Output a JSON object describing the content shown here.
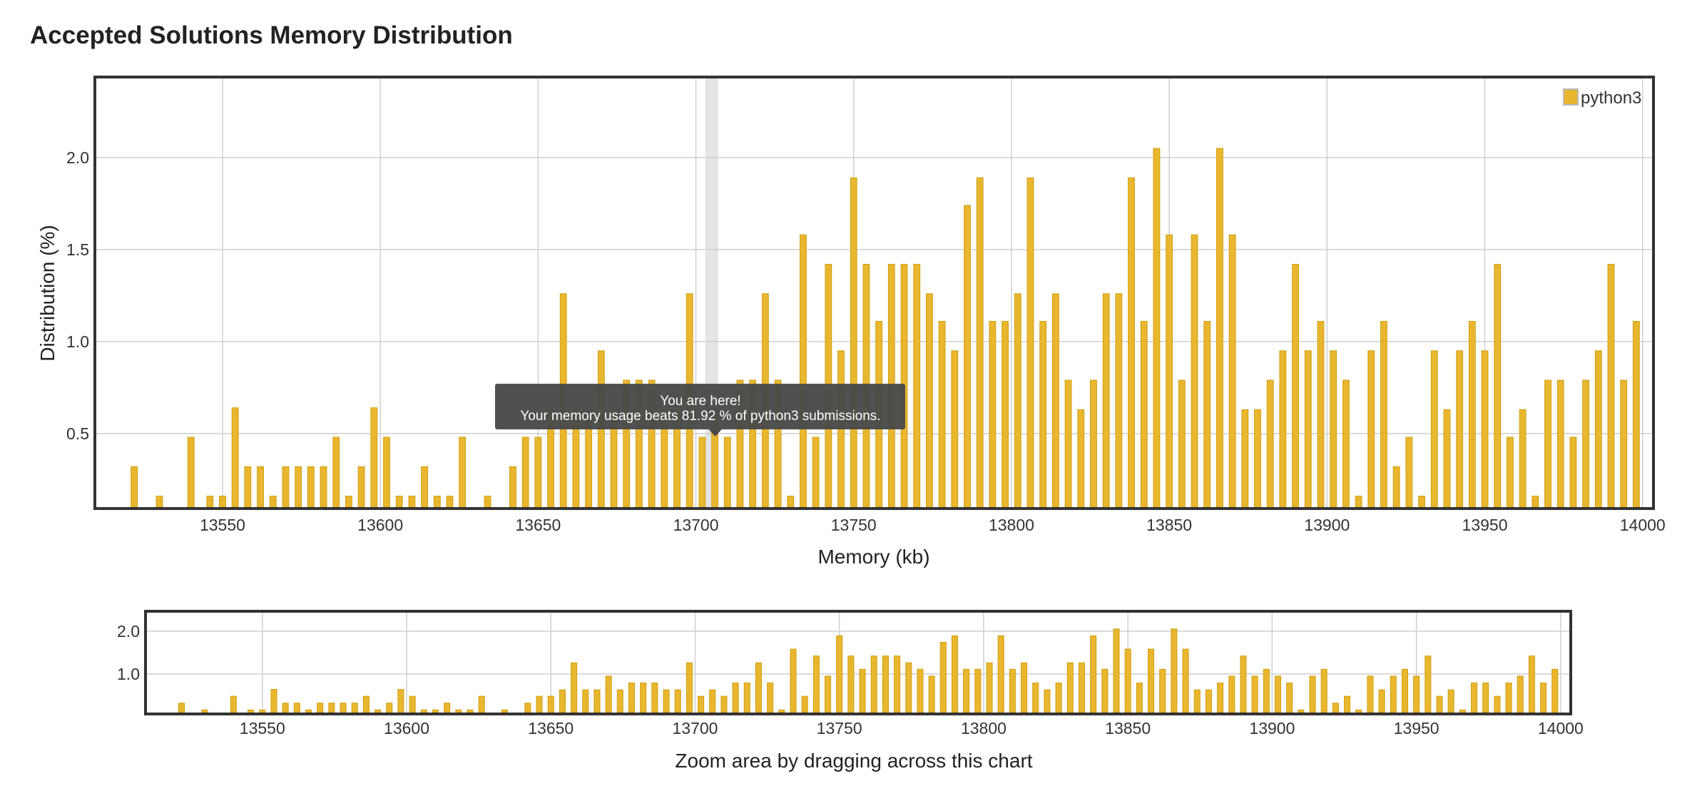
{
  "page": {
    "title": "Accepted Solutions Memory Distribution"
  },
  "colors": {
    "bar": "#e8b72f",
    "bar_stroke": "#d39f12",
    "grid": "#cfcfcf",
    "frame": "#333333",
    "highlight": "#e4e4e4",
    "tooltip_bg": "#4a4a4a"
  },
  "chart_data": [
    {
      "type": "bar",
      "xlabel": "Memory (kb)",
      "ylabel": "Distribution (%)",
      "xlim": [
        13510,
        14003
      ],
      "ylim": [
        0.1,
        2.43
      ],
      "xticks": [
        13550,
        13600,
        13650,
        13700,
        13750,
        13800,
        13850,
        13900,
        13950,
        14000
      ],
      "yticks": [
        0.5,
        1.0,
        1.5,
        2.0
      ],
      "grid": true,
      "legend": {
        "position": "top-right",
        "entries": [
          "python3"
        ]
      },
      "series": [
        {
          "name": "python3",
          "x": [
            13522,
            13530,
            13540,
            13546,
            13550,
            13554,
            13558,
            13562,
            13566,
            13570,
            13574,
            13578,
            13582,
            13586,
            13590,
            13594,
            13598,
            13602,
            13606,
            13610,
            13614,
            13618,
            13622,
            13626,
            13634,
            13642,
            13646,
            13650,
            13654,
            13658,
            13662,
            13666,
            13670,
            13674,
            13678,
            13682,
            13686,
            13690,
            13694,
            13698,
            13702,
            13706,
            13710,
            13714,
            13718,
            13722,
            13726,
            13730,
            13734,
            13738,
            13742,
            13746,
            13750,
            13754,
            13758,
            13762,
            13766,
            13770,
            13774,
            13778,
            13782,
            13786,
            13790,
            13794,
            13798,
            13802,
            13806,
            13810,
            13814,
            13818,
            13822,
            13826,
            13830,
            13834,
            13838,
            13842,
            13846,
            13850,
            13854,
            13858,
            13862,
            13866,
            13870,
            13874,
            13878,
            13882,
            13886,
            13890,
            13894,
            13898,
            13902,
            13906,
            13910,
            13914,
            13918,
            13922,
            13926,
            13930,
            13934,
            13938,
            13942,
            13946,
            13950,
            13954,
            13958,
            13962,
            13966,
            13970,
            13974,
            13978,
            13982,
            13986,
            13990,
            13994,
            13998
          ],
          "values": [
            0.32,
            0.16,
            0.48,
            0.16,
            0.16,
            0.64,
            0.32,
            0.32,
            0.16,
            0.32,
            0.32,
            0.32,
            0.32,
            0.48,
            0.16,
            0.32,
            0.64,
            0.48,
            0.16,
            0.16,
            0.32,
            0.16,
            0.16,
            0.48,
            0.16,
            0.32,
            0.48,
            0.48,
            0.63,
            1.26,
            0.63,
            0.63,
            0.95,
            0.63,
            0.79,
            0.79,
            0.79,
            0.63,
            0.63,
            1.26,
            0.48,
            0.63,
            0.48,
            0.79,
            0.79,
            1.26,
            0.79,
            0.16,
            1.58,
            0.48,
            1.42,
            0.95,
            1.89,
            1.42,
            1.11,
            1.42,
            1.42,
            1.42,
            1.26,
            1.11,
            0.95,
            1.74,
            1.89,
            1.11,
            1.11,
            1.26,
            1.89,
            1.11,
            1.26,
            0.79,
            0.63,
            0.79,
            1.26,
            1.26,
            1.89,
            1.11,
            2.05,
            1.58,
            0.79,
            1.58,
            1.11,
            2.05,
            1.58,
            0.63,
            0.63,
            0.79,
            0.95,
            1.42,
            0.95,
            1.11,
            0.95,
            0.79,
            0.16,
            0.95,
            1.11,
            0.32,
            0.48,
            0.16,
            0.95,
            0.63,
            0.95,
            1.11,
            0.95,
            1.42,
            0.48,
            0.63,
            0.16,
            0.79,
            0.79,
            0.48,
            0.79,
            0.95,
            1.42,
            0.79,
            1.11
          ]
        }
      ],
      "annotation": {
        "highlight_x": 13705,
        "tooltip": {
          "line1": "You are here!",
          "line2": "Your memory usage beats 81.92 % of python3 submissions."
        }
      }
    },
    {
      "type": "bar",
      "xlabel": "Zoom area by dragging across this chart",
      "xlim": [
        13510,
        14003
      ],
      "ylim": [
        0.1,
        2.43
      ],
      "xticks": [
        13550,
        13600,
        13650,
        13700,
        13750,
        13800,
        13850,
        13900,
        13950,
        14000
      ],
      "yticks": [
        1.0,
        2.0
      ],
      "grid": true
    }
  ]
}
